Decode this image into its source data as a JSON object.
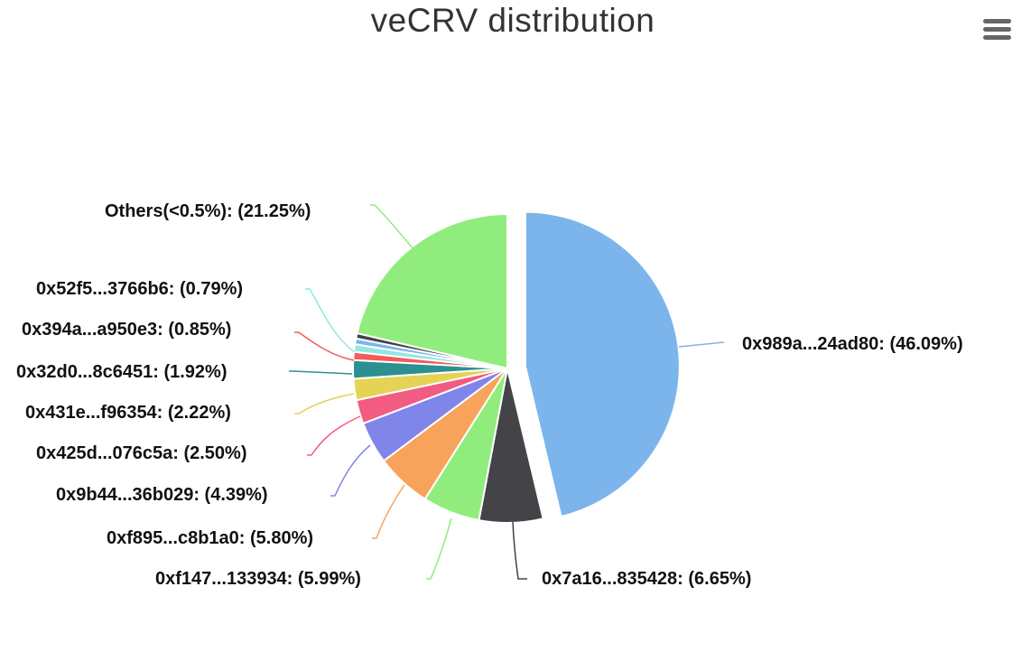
{
  "chart": {
    "title": "veCRV distribution"
  },
  "menu": {
    "icon": "hamburger-icon"
  },
  "chart_data": {
    "type": "pie",
    "title": "veCRV distribution",
    "slices": [
      {
        "label": "0x989a...24ad80",
        "value": 46.09,
        "color": "#7cb5ec",
        "sliced": true
      },
      {
        "label": "0x7a16...835428",
        "value": 6.65,
        "color": "#434348"
      },
      {
        "label": "0xf147...133934",
        "value": 5.99,
        "color": "#90ed7d"
      },
      {
        "label": "0xf895...c8b1a0",
        "value": 5.8,
        "color": "#f7a35c"
      },
      {
        "label": "0x9b44...36b029",
        "value": 4.39,
        "color": "#8085e9"
      },
      {
        "label": "0x425d...076c5a",
        "value": 2.5,
        "color": "#f15c80"
      },
      {
        "label": "0x431e...f96354",
        "value": 2.22,
        "color": "#e4d354"
      },
      {
        "label": "0x32d0...8c6451",
        "value": 1.92,
        "color": "#2b908f"
      },
      {
        "label": "0x394a...a950e3",
        "value": 0.85,
        "color": "#f45b5b"
      },
      {
        "label": "0x52f5...3766b6",
        "value": 0.79,
        "color": "#91e8e1"
      },
      {
        "label": "",
        "value": 0.6,
        "color": "#7cb5ec"
      },
      {
        "label": "",
        "value": 0.55,
        "color": "#434348"
      },
      {
        "label": "Others(<0.5%)",
        "value": 21.25,
        "color": "#90ed7d"
      }
    ],
    "data_labels": [
      "0x989a...24ad80: (46.09%)",
      "0x7a16...835428: (6.65%)",
      "0xf147...133934: (5.99%)",
      "0xf895...c8b1a0: (5.80%)",
      "0x9b44...36b029: (4.39%)",
      "0x425d...076c5a: (2.50%)",
      "0x431e...f96354: (2.22%)",
      "0x32d0...8c6451: (1.92%)",
      "0x394a...a950e3: (0.85%)",
      "0x52f5...3766b6: (0.79%)",
      "",
      "",
      "Others(<0.5%): (21.25%)"
    ]
  }
}
